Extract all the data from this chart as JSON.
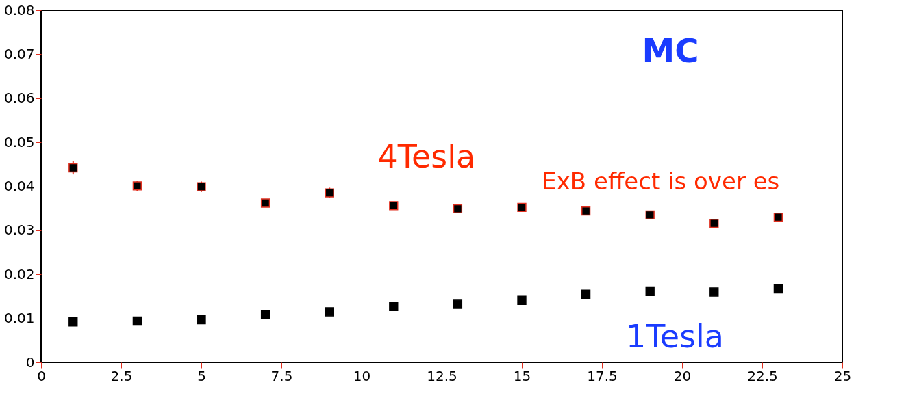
{
  "chart_data": {
    "type": "scatter",
    "annotations": [
      "MC",
      "ExB effect is over es"
    ],
    "x": [
      1,
      3,
      5,
      7,
      9,
      11,
      13,
      15,
      17,
      19,
      21,
      23
    ],
    "series": [
      {
        "name": "4Tesla",
        "color": "#000000",
        "values": [
          0.0442,
          0.0401,
          0.0399,
          0.0362,
          0.0385,
          0.0356,
          0.0349,
          0.0352,
          0.0344,
          0.0335,
          0.0316,
          0.033
        ],
        "errors": [
          0.0015,
          0.0012,
          0.0012,
          null,
          0.0012,
          null,
          null,
          null,
          null,
          null,
          null,
          null
        ]
      },
      {
        "name": "1Tesla",
        "color": "#000000",
        "values": [
          0.0092,
          0.0094,
          0.0097,
          0.0109,
          0.0115,
          0.0127,
          0.0132,
          0.0141,
          0.0155,
          0.0161,
          0.016,
          0.0167
        ]
      }
    ],
    "xlim": [
      0,
      25
    ],
    "xticks": [
      0,
      2.5,
      5,
      7.5,
      10,
      12.5,
      15,
      17.5,
      20,
      22.5,
      25
    ],
    "ylim": [
      0,
      0.08
    ],
    "yticks": [
      0,
      0.01,
      0.02,
      0.03,
      0.04,
      0.05,
      0.06,
      0.07,
      0.08
    ],
    "marker": "square"
  }
}
